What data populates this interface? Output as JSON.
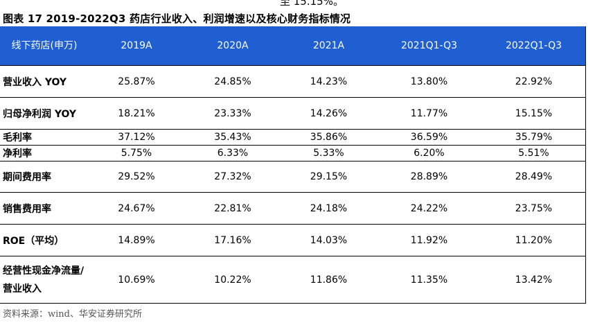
{
  "top_fragment": "至 15.15%。",
  "caption": "图表 17 2019-2022Q3 药店行业收入、利润增速以及核心财务指标情况",
  "table": {
    "corner_label": "线下药店(申万)",
    "columns": [
      "2019A",
      "2020A",
      "2021A",
      "2021Q1-Q3",
      "2022Q1-Q3"
    ],
    "rows": [
      {
        "label": "营业收入 YOY",
        "values": [
          "25.87%",
          "24.85%",
          "14.23%",
          "13.80%",
          "22.92%"
        ]
      },
      {
        "label": "归母净利润 YOY",
        "values": [
          "18.21%",
          "23.33%",
          "14.26%",
          "11.77%",
          "15.15%"
        ]
      },
      {
        "label": "毛利率",
        "values": [
          "37.12%",
          "35.43%",
          "35.86%",
          "36.59%",
          "35.79%"
        ]
      },
      {
        "label": "净利率",
        "values": [
          "5.75%",
          "6.33%",
          "5.33%",
          "6.20%",
          "5.51%"
        ]
      },
      {
        "label": "期间费用率",
        "values": [
          "29.52%",
          "27.32%",
          "29.15%",
          "28.89%",
          "28.49%"
        ]
      },
      {
        "label": "销售费用率",
        "values": [
          "24.67%",
          "22.81%",
          "24.18%",
          "24.22%",
          "23.75%"
        ]
      },
      {
        "label": "ROE（平均）",
        "values": [
          "14.89%",
          "17.16%",
          "14.03%",
          "11.92%",
          "11.20%"
        ]
      },
      {
        "label": "经营性现金净流量/营业收入",
        "values": [
          "10.69%",
          "10.22%",
          "11.86%",
          "11.35%",
          "13.42%"
        ]
      }
    ]
  },
  "source": "资料来源：wind、华安证券研究所",
  "colors": {
    "header_bg": "#1f5fd1",
    "header_text": "#ffffff"
  }
}
